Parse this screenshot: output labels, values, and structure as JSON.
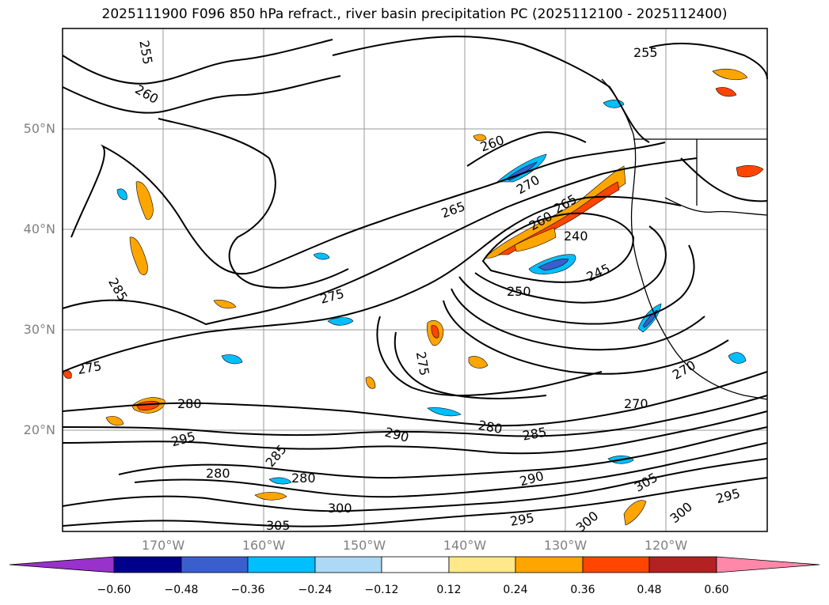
{
  "title": "2025111900 F096 850 hPa refract., river basin precipitation PC (2025112100 - 2025112400)",
  "latitude_labels": [
    "50°N",
    "40°N",
    "30°N",
    "20°N"
  ],
  "longitude_labels": [
    "170°W",
    "160°W",
    "150°W",
    "140°W",
    "130°W",
    "120°W"
  ],
  "contour_labels": [
    "255",
    "260",
    "265",
    "270",
    "275",
    "280",
    "285",
    "290",
    "295",
    "300",
    "305",
    "240",
    "245",
    "250",
    "255",
    "260",
    "265",
    "270",
    "275",
    "280",
    "285",
    "290",
    "295",
    "300",
    "305",
    "260",
    "270",
    "275",
    "280",
    "280",
    "285",
    "295",
    "300"
  ],
  "colorbar": {
    "tick_labels": [
      "−0.60",
      "−0.48",
      "−0.36",
      "−0.24",
      "−0.12",
      "0.12",
      "0.24",
      "0.36",
      "0.48",
      "0.60"
    ],
    "colors": [
      "#9932cc",
      "#00008b",
      "#3a5fcd",
      "#00bfff",
      "#add8f6",
      "#ffffff",
      "#ffe88a",
      "#ffa500",
      "#ff4500",
      "#b22222",
      "#ff88aa"
    ]
  }
}
